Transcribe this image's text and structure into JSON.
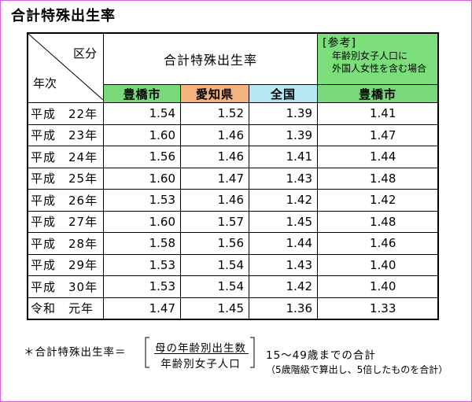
{
  "title": "合計特殊出生率",
  "table": {
    "corner_top": "区分",
    "corner_bottom": "年次",
    "group_header": "合計特殊出生率",
    "reference": {
      "label": "[参考]",
      "note_line1": "年齢別女子人口に",
      "note_line2": "外国人女性を含む場合"
    },
    "columns": [
      "豊橋市",
      "愛知県",
      "全国",
      "豊橋市"
    ],
    "column_colors": [
      "#79d879",
      "#f3b27e",
      "#b5e6f1",
      "#79d879"
    ],
    "rows": [
      {
        "year": "平成　22年",
        "toyohashi": "1.54",
        "aichi": "1.52",
        "japan": "1.39",
        "ref": "1.41"
      },
      {
        "year": "平成　23年",
        "toyohashi": "1.60",
        "aichi": "1.46",
        "japan": "1.39",
        "ref": "1.47"
      },
      {
        "year": "平成　24年",
        "toyohashi": "1.56",
        "aichi": "1.46",
        "japan": "1.41",
        "ref": "1.44"
      },
      {
        "year": "平成　25年",
        "toyohashi": "1.60",
        "aichi": "1.47",
        "japan": "1.43",
        "ref": "1.48"
      },
      {
        "year": "平成　26年",
        "toyohashi": "1.53",
        "aichi": "1.46",
        "japan": "1.42",
        "ref": "1.42"
      },
      {
        "year": "平成　27年",
        "toyohashi": "1.60",
        "aichi": "1.57",
        "japan": "1.45",
        "ref": "1.48"
      },
      {
        "year": "平成　28年",
        "toyohashi": "1.58",
        "aichi": "1.56",
        "japan": "1.44",
        "ref": "1.46"
      },
      {
        "year": "平成　29年",
        "toyohashi": "1.53",
        "aichi": "1.54",
        "japan": "1.43",
        "ref": "1.40"
      },
      {
        "year": "平成　30年",
        "toyohashi": "1.53",
        "aichi": "1.54",
        "japan": "1.42",
        "ref": "1.40"
      },
      {
        "year": "令和　元年",
        "toyohashi": "1.47",
        "aichi": "1.45",
        "japan": "1.36",
        "ref": "1.33"
      }
    ]
  },
  "formula": {
    "lhs": "＊合計特殊出生率＝",
    "numerator": "母の年齢別出生数",
    "denominator": "年齢別女子人口",
    "range": "15～49歳までの合計",
    "note": "（5歳階級で算出し、5倍したものを合計）"
  }
}
